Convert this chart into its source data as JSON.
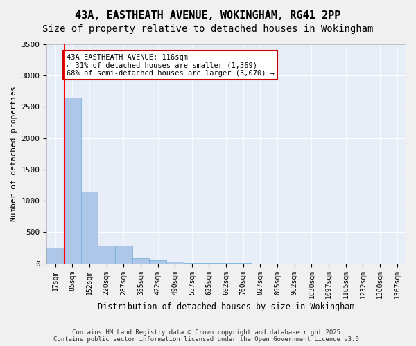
{
  "title_line1": "43A, EASTHEATH AVENUE, WOKINGHAM, RG41 2PP",
  "title_line2": "Size of property relative to detached houses in Wokingham",
  "xlabel": "Distribution of detached houses by size in Wokingham",
  "ylabel": "Number of detached properties",
  "bin_labels": [
    "17sqm",
    "85sqm",
    "152sqm",
    "220sqm",
    "287sqm",
    "355sqm",
    "422sqm",
    "490sqm",
    "557sqm",
    "625sqm",
    "692sqm",
    "760sqm",
    "827sqm",
    "895sqm",
    "962sqm",
    "1030sqm",
    "1097sqm",
    "1165sqm",
    "1232sqm",
    "1300sqm",
    "1367sqm"
  ],
  "bar_heights": [
    250,
    2650,
    1150,
    280,
    280,
    80,
    55,
    30,
    8,
    5,
    3,
    2,
    1,
    1,
    0,
    0,
    0,
    0,
    0,
    0,
    0
  ],
  "bar_color": "#aec6e8",
  "bar_edge_color": "#6aaed6",
  "background_color": "#e8eef8",
  "grid_color": "#ffffff",
  "annotation_text": "43A EASTHEATH AVENUE: 116sqm\n← 31% of detached houses are smaller (1,369)\n68% of semi-detached houses are larger (3,070) →",
  "annotation_box_color": "#ffffff",
  "annotation_box_edge": "#cc0000",
  "ylim": [
    0,
    3500
  ],
  "yticks": [
    0,
    500,
    1000,
    1500,
    2000,
    2500,
    3000,
    3500
  ],
  "footer_line1": "Contains HM Land Registry data © Crown copyright and database right 2025.",
  "footer_line2": "Contains public sector information licensed under the Open Government Licence v3.0.",
  "title_fontsize": 11,
  "subtitle_fontsize": 10,
  "axis_label_fontsize": 8,
  "tick_fontsize": 7,
  "annotation_fontsize": 7.5,
  "footer_fontsize": 6.5
}
